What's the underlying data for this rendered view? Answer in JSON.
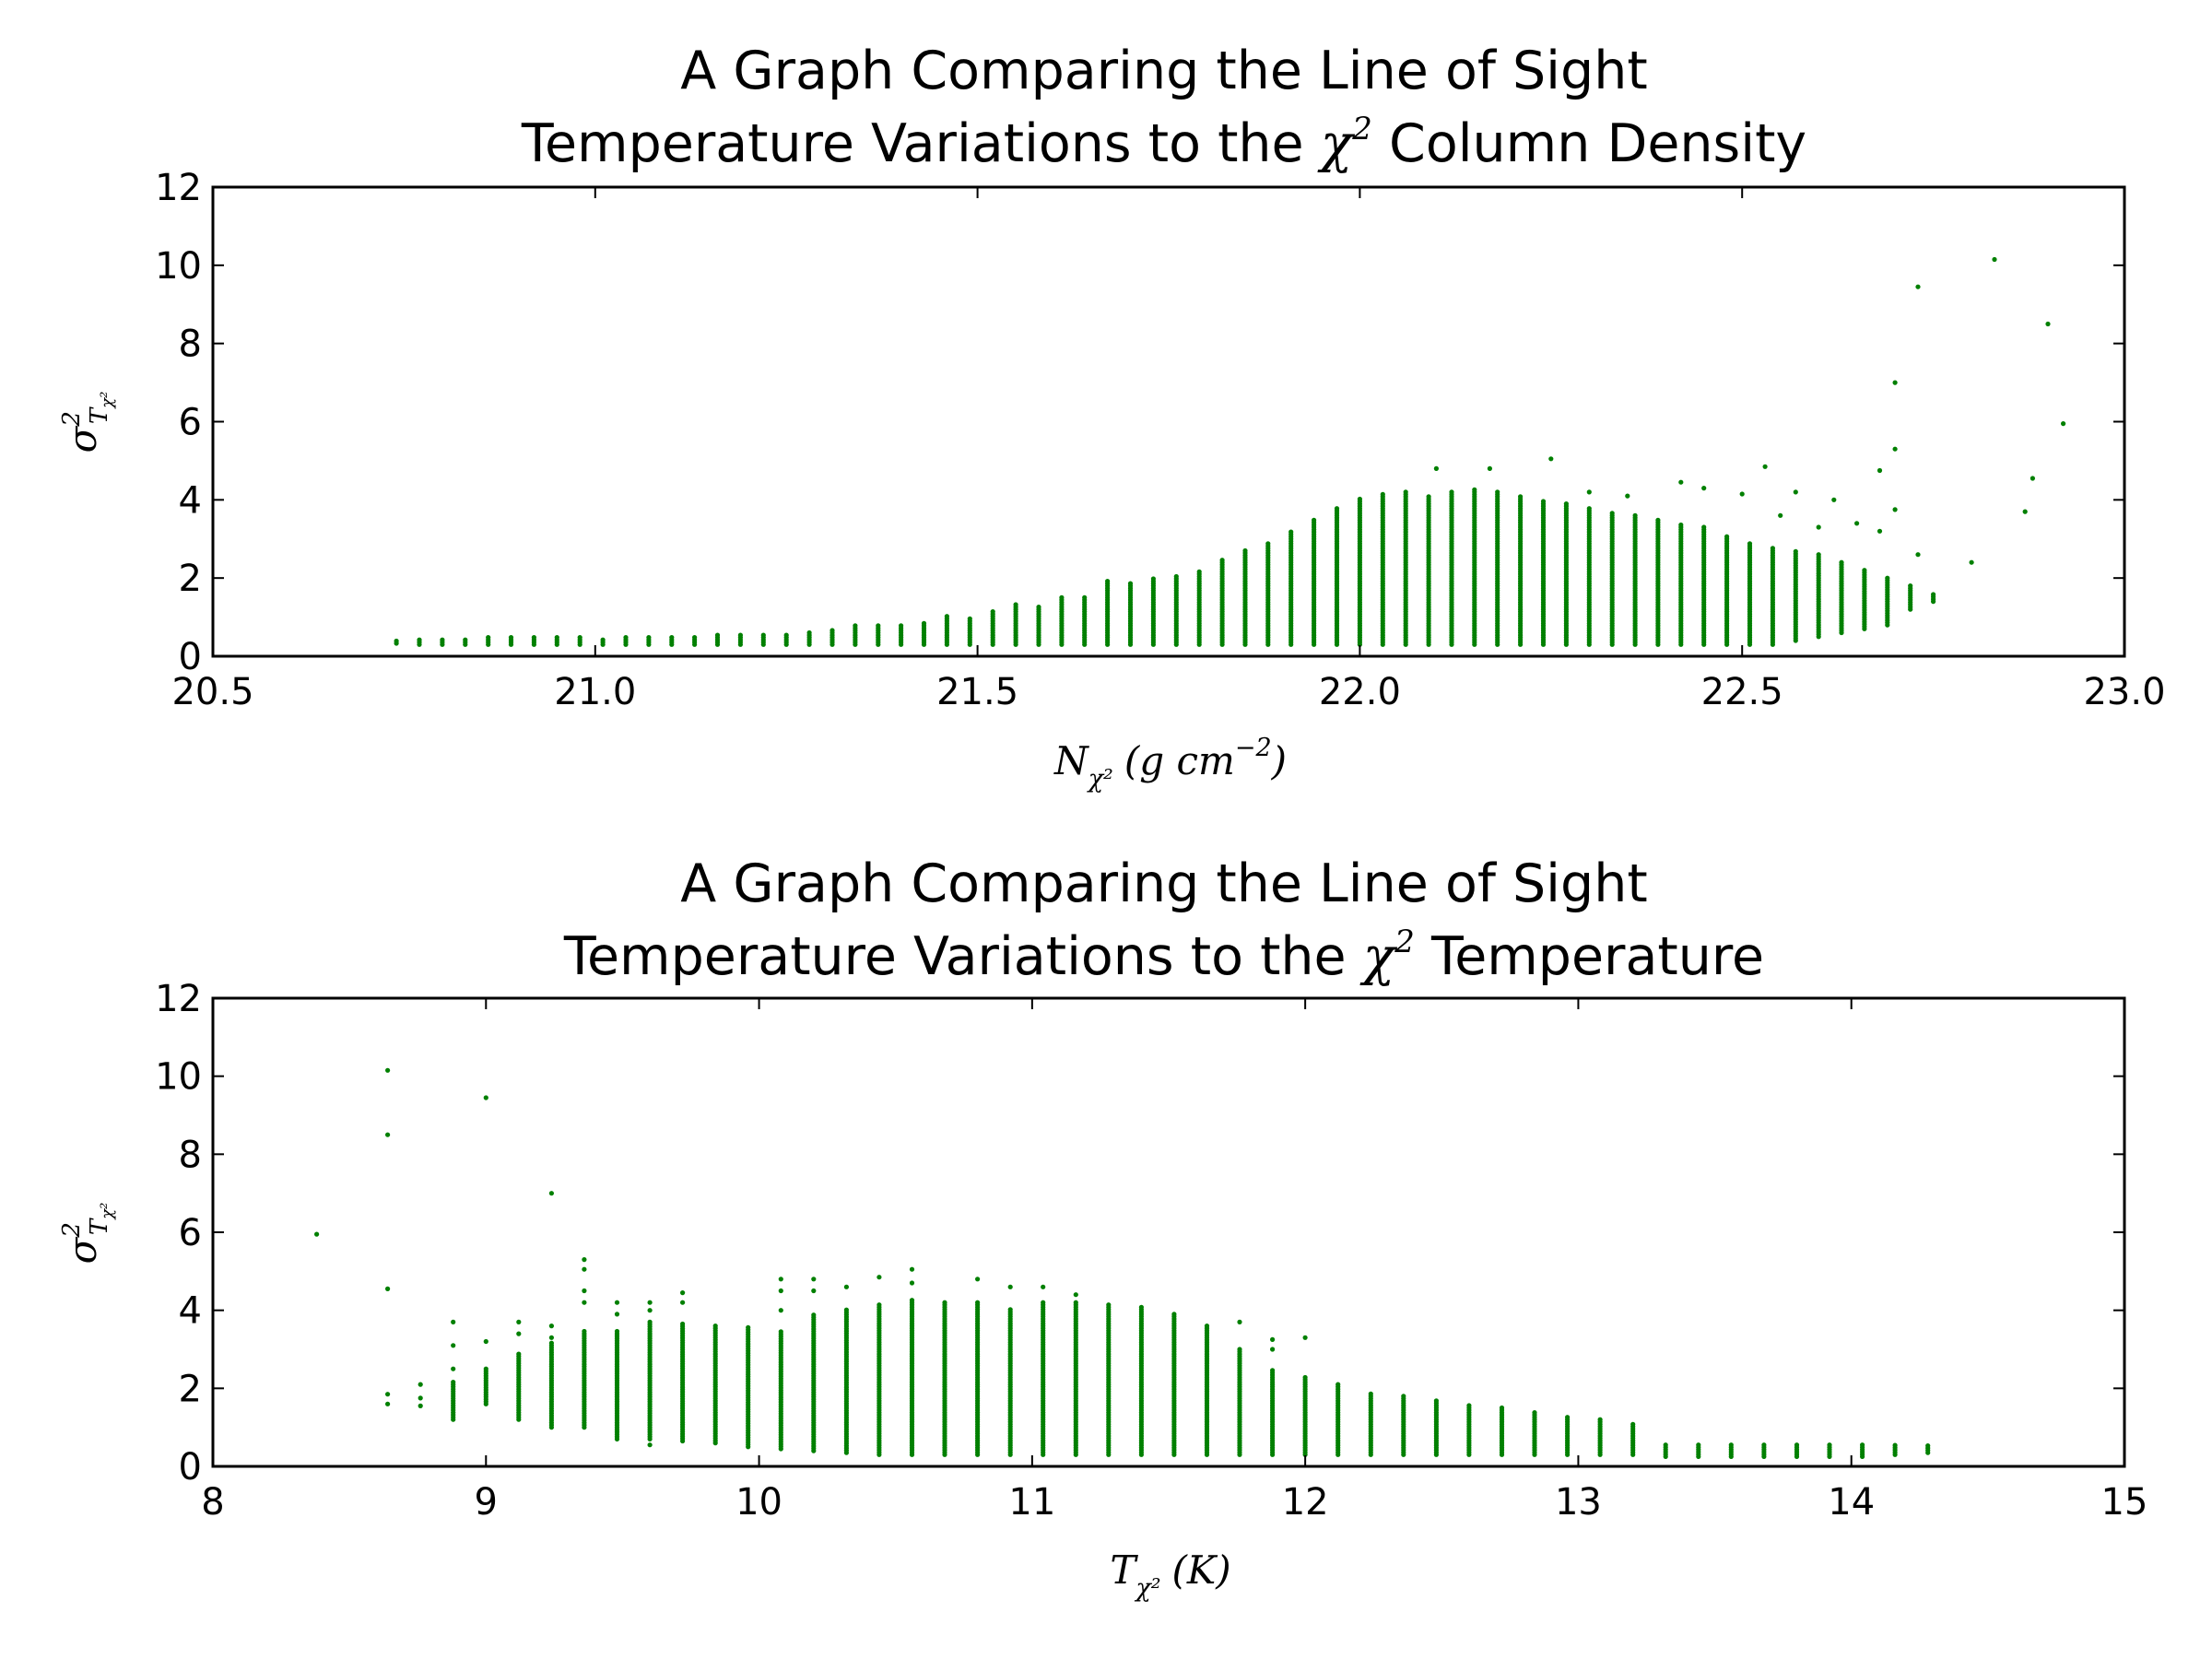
{
  "colors": {
    "marker": "#008000",
    "axes": "#000000",
    "background": "#ffffff"
  },
  "chart_data": [
    {
      "type": "scatter",
      "title_line1": "A Graph Comparing the Line of Sight",
      "title_line2_prefix": "Temperature Variations to the ",
      "title_chi": "χ",
      "title_chi_sup": "2",
      "title_line2_suffix": " Column Density",
      "xlabel": "N",
      "xlabel_sub": "χ²",
      "xlabel_units": "(g cm",
      "xlabel_units_sup": "−2",
      "xlabel_close": ")",
      "ylabel": "σ",
      "ylabel_sup": "2",
      "ylabel_sub": "T",
      "ylabel_subsub": "χ²",
      "xlim": [
        20.5,
        23.0
      ],
      "ylim": [
        0,
        12
      ],
      "xticks": [
        "20.5",
        "21.0",
        "21.5",
        "22.0",
        "22.5",
        "23.0"
      ],
      "yticks": [
        "0",
        "2",
        "4",
        "6",
        "8",
        "10",
        "12"
      ],
      "marker_color": "#008000",
      "columns": [
        [
          20.74,
          0.33,
          0.39
        ],
        [
          20.77,
          0.3,
          0.46
        ],
        [
          20.8,
          0.3,
          0.46
        ],
        [
          20.83,
          0.3,
          0.47
        ],
        [
          20.86,
          0.3,
          0.49
        ],
        [
          20.89,
          0.3,
          0.49
        ],
        [
          20.92,
          0.3,
          0.49
        ],
        [
          20.95,
          0.3,
          0.5
        ],
        [
          20.98,
          0.3,
          0.51
        ],
        [
          21.01,
          0.3,
          0.47
        ],
        [
          21.04,
          0.3,
          0.49
        ],
        [
          21.07,
          0.3,
          0.51
        ],
        [
          21.1,
          0.3,
          0.51
        ],
        [
          21.13,
          0.3,
          0.53
        ],
        [
          21.16,
          0.3,
          0.55
        ],
        [
          21.19,
          0.3,
          0.55
        ],
        [
          21.22,
          0.3,
          0.56
        ],
        [
          21.25,
          0.3,
          0.58
        ],
        [
          21.28,
          0.3,
          0.62
        ],
        [
          21.31,
          0.3,
          0.7
        ],
        [
          21.34,
          0.3,
          0.82
        ],
        [
          21.37,
          0.3,
          0.82
        ],
        [
          21.4,
          0.3,
          0.82
        ],
        [
          21.43,
          0.3,
          0.86
        ],
        [
          21.46,
          0.3,
          1.02
        ],
        [
          21.49,
          0.3,
          0.98
        ],
        [
          21.52,
          0.3,
          1.14
        ],
        [
          21.55,
          0.3,
          1.32
        ],
        [
          21.58,
          0.3,
          1.3
        ],
        [
          21.61,
          0.3,
          1.5
        ],
        [
          21.64,
          0.3,
          1.5
        ],
        [
          21.67,
          0.3,
          1.92
        ],
        [
          21.7,
          0.3,
          1.9
        ],
        [
          21.73,
          0.3,
          2.0
        ],
        [
          21.76,
          0.3,
          2.06
        ],
        [
          21.79,
          0.3,
          2.2
        ],
        [
          21.82,
          0.3,
          2.5
        ],
        [
          21.85,
          0.3,
          2.74
        ],
        [
          21.88,
          0.3,
          2.9
        ],
        [
          21.91,
          0.3,
          3.2
        ],
        [
          21.94,
          0.3,
          3.5
        ],
        [
          21.97,
          0.3,
          3.8
        ],
        [
          22.0,
          0.3,
          4.05
        ],
        [
          22.03,
          0.3,
          4.15
        ],
        [
          22.06,
          0.3,
          4.2
        ],
        [
          22.09,
          0.3,
          4.1
        ],
        [
          22.12,
          0.3,
          4.2
        ],
        [
          22.15,
          0.3,
          4.3
        ],
        [
          22.18,
          0.3,
          4.2
        ],
        [
          22.21,
          0.3,
          4.1
        ],
        [
          22.24,
          0.3,
          4.0
        ],
        [
          22.27,
          0.3,
          3.9
        ],
        [
          22.3,
          0.3,
          3.8
        ],
        [
          22.33,
          0.3,
          3.7
        ],
        [
          22.36,
          0.3,
          3.6
        ],
        [
          22.39,
          0.3,
          3.5
        ],
        [
          22.42,
          0.3,
          3.4
        ],
        [
          22.45,
          0.3,
          3.3
        ],
        [
          22.48,
          0.3,
          3.1
        ],
        [
          22.51,
          0.3,
          2.9
        ],
        [
          22.54,
          0.3,
          2.8
        ],
        [
          22.57,
          0.4,
          2.7
        ],
        [
          22.6,
          0.5,
          2.6
        ],
        [
          22.63,
          0.6,
          2.4
        ],
        [
          22.66,
          0.7,
          2.2
        ],
        [
          22.69,
          0.8,
          2.0
        ],
        [
          22.72,
          1.2,
          1.8
        ],
        [
          22.75,
          1.4,
          1.6
        ]
      ],
      "outliers": [
        [
          22.83,
          10.15
        ],
        [
          22.73,
          9.45
        ],
        [
          22.9,
          8.5
        ],
        [
          22.7,
          7.0
        ],
        [
          22.92,
          5.95
        ],
        [
          22.7,
          5.3
        ],
        [
          22.25,
          5.05
        ],
        [
          22.53,
          4.85
        ],
        [
          22.88,
          4.55
        ],
        [
          22.1,
          4.8
        ],
        [
          22.17,
          4.8
        ],
        [
          22.42,
          4.45
        ],
        [
          22.45,
          4.3
        ],
        [
          22.5,
          4.15
        ],
        [
          22.57,
          4.2
        ],
        [
          22.68,
          4.75
        ],
        [
          22.62,
          4.0
        ],
        [
          22.7,
          3.75
        ],
        [
          22.87,
          3.7
        ],
        [
          22.3,
          4.2
        ],
        [
          22.35,
          4.1
        ],
        [
          22.65,
          3.4
        ],
        [
          22.55,
          3.6
        ],
        [
          22.6,
          3.3
        ],
        [
          22.68,
          3.2
        ],
        [
          22.73,
          2.6
        ],
        [
          22.8,
          2.4
        ]
      ]
    },
    {
      "type": "scatter",
      "title_line1": "A Graph Comparing the Line of Sight",
      "title_line2_prefix": "Temperature Variations to the ",
      "title_chi": "χ",
      "title_chi_sup": "2",
      "title_line2_suffix": " Temperature",
      "xlabel": "T",
      "xlabel_sub": "χ²",
      "xlabel_units": "(K)",
      "ylabel": "σ",
      "ylabel_sup": "2",
      "ylabel_sub": "T",
      "ylabel_subsub": "χ²",
      "xlim": [
        8,
        15
      ],
      "ylim": [
        0,
        12
      ],
      "xticks": [
        "8",
        "9",
        "10",
        "11",
        "12",
        "13",
        "14",
        "15"
      ],
      "yticks": [
        "0",
        "2",
        "4",
        "6",
        "8",
        "10",
        "12"
      ],
      "marker_color": "#008000",
      "columns": [
        [
          8.88,
          1.2,
          2.2
        ],
        [
          9.0,
          1.6,
          2.5
        ],
        [
          9.12,
          1.2,
          2.9
        ],
        [
          9.24,
          1.0,
          3.2
        ],
        [
          9.36,
          1.0,
          3.5
        ],
        [
          9.48,
          0.7,
          3.5
        ],
        [
          9.6,
          0.7,
          3.7
        ],
        [
          9.72,
          0.65,
          3.7
        ],
        [
          9.84,
          0.6,
          3.6
        ],
        [
          9.96,
          0.5,
          3.6
        ],
        [
          10.08,
          0.45,
          3.5
        ],
        [
          10.2,
          0.4,
          3.9
        ],
        [
          10.32,
          0.35,
          4.05
        ],
        [
          10.44,
          0.3,
          4.15
        ],
        [
          10.56,
          0.3,
          4.3
        ],
        [
          10.68,
          0.3,
          4.2
        ],
        [
          10.8,
          0.3,
          4.2
        ],
        [
          10.92,
          0.3,
          4.05
        ],
        [
          11.04,
          0.3,
          4.2
        ],
        [
          11.16,
          0.3,
          4.2
        ],
        [
          11.28,
          0.3,
          4.15
        ],
        [
          11.4,
          0.3,
          4.1
        ],
        [
          11.52,
          0.3,
          3.9
        ],
        [
          11.64,
          0.3,
          3.6
        ],
        [
          11.76,
          0.3,
          3.0
        ],
        [
          11.88,
          0.3,
          2.5
        ],
        [
          12.0,
          0.3,
          2.3
        ],
        [
          12.12,
          0.3,
          2.1
        ],
        [
          12.24,
          0.3,
          1.9
        ],
        [
          12.36,
          0.3,
          1.8
        ],
        [
          12.48,
          0.3,
          1.7
        ],
        [
          12.6,
          0.3,
          1.6
        ],
        [
          12.72,
          0.3,
          1.5
        ],
        [
          12.84,
          0.3,
          1.4
        ],
        [
          12.96,
          0.3,
          1.3
        ],
        [
          13.08,
          0.3,
          1.2
        ],
        [
          13.2,
          0.3,
          1.1
        ],
        [
          13.32,
          0.25,
          0.6
        ],
        [
          13.44,
          0.25,
          0.6
        ],
        [
          13.56,
          0.25,
          0.6
        ],
        [
          13.68,
          0.25,
          0.6
        ],
        [
          13.8,
          0.25,
          0.6
        ],
        [
          13.92,
          0.25,
          0.55
        ],
        [
          14.04,
          0.25,
          0.55
        ],
        [
          14.16,
          0.3,
          0.55
        ],
        [
          14.28,
          0.35,
          0.55
        ]
      ],
      "outliers": [
        [
          8.64,
          10.15
        ],
        [
          8.64,
          8.5
        ],
        [
          9.0,
          9.45
        ],
        [
          9.24,
          7.0
        ],
        [
          8.38,
          5.95
        ],
        [
          8.64,
          4.55
        ],
        [
          8.64,
          1.85
        ],
        [
          8.64,
          1.6
        ],
        [
          8.76,
          2.1
        ],
        [
          8.76,
          1.75
        ],
        [
          8.76,
          1.55
        ],
        [
          8.88,
          3.7
        ],
        [
          8.88,
          3.1
        ],
        [
          8.88,
          2.5
        ],
        [
          9.0,
          3.2
        ],
        [
          9.12,
          3.7
        ],
        [
          9.12,
          3.4
        ],
        [
          9.24,
          3.6
        ],
        [
          9.24,
          3.3
        ],
        [
          9.36,
          5.3
        ],
        [
          9.36,
          5.05
        ],
        [
          9.36,
          4.5
        ],
        [
          9.36,
          4.2
        ],
        [
          9.48,
          4.2
        ],
        [
          9.48,
          3.9
        ],
        [
          9.6,
          4.2
        ],
        [
          9.6,
          4.0
        ],
        [
          9.6,
          0.55
        ],
        [
          9.72,
          4.45
        ],
        [
          9.72,
          4.2
        ],
        [
          10.08,
          4.8
        ],
        [
          10.08,
          4.5
        ],
        [
          10.08,
          4.0
        ],
        [
          10.2,
          4.8
        ],
        [
          10.2,
          4.5
        ],
        [
          10.32,
          4.6
        ],
        [
          10.44,
          4.85
        ],
        [
          10.56,
          5.05
        ],
        [
          10.56,
          4.7
        ],
        [
          10.8,
          4.8
        ],
        [
          10.92,
          4.6
        ],
        [
          11.04,
          4.6
        ],
        [
          11.16,
          4.4
        ],
        [
          11.76,
          3.7
        ],
        [
          11.88,
          3.25
        ],
        [
          11.88,
          3.0
        ],
        [
          12.0,
          3.3
        ]
      ]
    }
  ]
}
